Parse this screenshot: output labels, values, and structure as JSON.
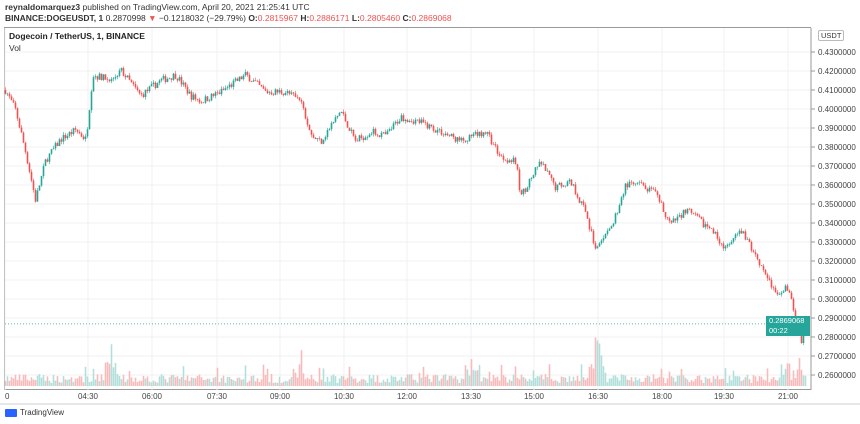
{
  "header": {
    "publisher": "reynaldomarquez3",
    "published_text": "published on TradingView.com, April 20, 2021 21:25:41 UTC",
    "symbol": "BINANCE:DOGEUSDT, 1",
    "last": "0.2870998",
    "change": "−0.1218032 (−29.79%)",
    "open_label": "O:",
    "open": "0.2815967",
    "high_label": "H:",
    "high": "0.2886171",
    "low_label": "L:",
    "low": "0.2805460",
    "close_label": "C:",
    "close": "0.2869068"
  },
  "pane": {
    "title": "Dogecoin / TetherUS, 1, BINANCE",
    "volume_label": "Vol"
  },
  "currency_badge": "USDT",
  "price_tag": {
    "price": "0.2869068",
    "countdown": "00:22"
  },
  "footer": {
    "brand": "TradingView"
  },
  "colors": {
    "up": "#26a69a",
    "down": "#ef5350",
    "up_vol": "#b2dfdb",
    "down_vol": "#f8bbbb"
  },
  "chart_data": {
    "type": "candlestick",
    "title": "Dogecoin / TetherUS, 1, BINANCE",
    "y_ticks": [
      "0.4300000",
      "0.4200000",
      "0.4100000",
      "0.4000000",
      "0.3900000",
      "0.3800000",
      "0.3700000",
      "0.3600000",
      "0.3500000",
      "0.3400000",
      "0.3300000",
      "0.3200000",
      "0.3100000",
      "0.3000000",
      "0.2900000",
      "0.2800000",
      "0.2700000",
      "0.2600000"
    ],
    "x_ticks": [
      "0",
      "04:30",
      "06:00",
      "07:30",
      "09:00",
      "10:30",
      "12:00",
      "13:30",
      "15:00",
      "16:30",
      "18:00",
      "19:30",
      "21:00"
    ],
    "ylim": [
      0.2545,
      0.4405
    ],
    "price_path_hours_vs_close": [
      [
        2.53,
        0.41
      ],
      [
        2.77,
        0.3995
      ],
      [
        3.0,
        0.378
      ],
      [
        3.24,
        0.352
      ],
      [
        3.48,
        0.373
      ],
      [
        3.83,
        0.384
      ],
      [
        4.19,
        0.389
      ],
      [
        4.43,
        0.384
      ],
      [
        4.59,
        0.418
      ],
      [
        5.02,
        0.415
      ],
      [
        5.25,
        0.4205
      ],
      [
        5.72,
        0.407
      ],
      [
        6.19,
        0.415
      ],
      [
        6.55,
        0.418
      ],
      [
        6.9,
        0.407
      ],
      [
        7.14,
        0.404
      ],
      [
        7.61,
        0.409
      ],
      [
        8.2,
        0.418
      ],
      [
        8.67,
        0.409
      ],
      [
        9.14,
        0.409
      ],
      [
        9.5,
        0.404
      ],
      [
        9.73,
        0.386
      ],
      [
        9.97,
        0.383
      ],
      [
        10.44,
        0.399
      ],
      [
        10.79,
        0.383
      ],
      [
        11.15,
        0.388
      ],
      [
        11.5,
        0.386
      ],
      [
        11.86,
        0.396
      ],
      [
        12.33,
        0.393
      ],
      [
        12.8,
        0.388
      ],
      [
        13.27,
        0.383
      ],
      [
        13.62,
        0.386
      ],
      [
        13.86,
        0.388
      ],
      [
        14.21,
        0.375
      ],
      [
        14.57,
        0.372
      ],
      [
        14.68,
        0.354
      ],
      [
        15.15,
        0.372
      ],
      [
        15.5,
        0.359
      ],
      [
        15.86,
        0.362
      ],
      [
        16.21,
        0.346
      ],
      [
        16.45,
        0.326
      ],
      [
        16.8,
        0.336
      ],
      [
        17.16,
        0.36
      ],
      [
        17.51,
        0.36
      ],
      [
        17.87,
        0.355
      ],
      [
        18.22,
        0.339
      ],
      [
        18.58,
        0.347
      ],
      [
        18.93,
        0.341
      ],
      [
        19.28,
        0.334
      ],
      [
        19.52,
        0.326
      ],
      [
        19.88,
        0.336
      ],
      [
        20.23,
        0.323
      ],
      [
        20.47,
        0.313
      ],
      [
        20.7,
        0.302
      ],
      [
        20.94,
        0.307
      ],
      [
        21.18,
        0.2915
      ],
      [
        21.3,
        0.278
      ],
      [
        21.42,
        0.2869
      ]
    ],
    "volume_spikes_hours": [
      5.0,
      9.5,
      13.6,
      16.45,
      20.9,
      21.3
    ]
  }
}
